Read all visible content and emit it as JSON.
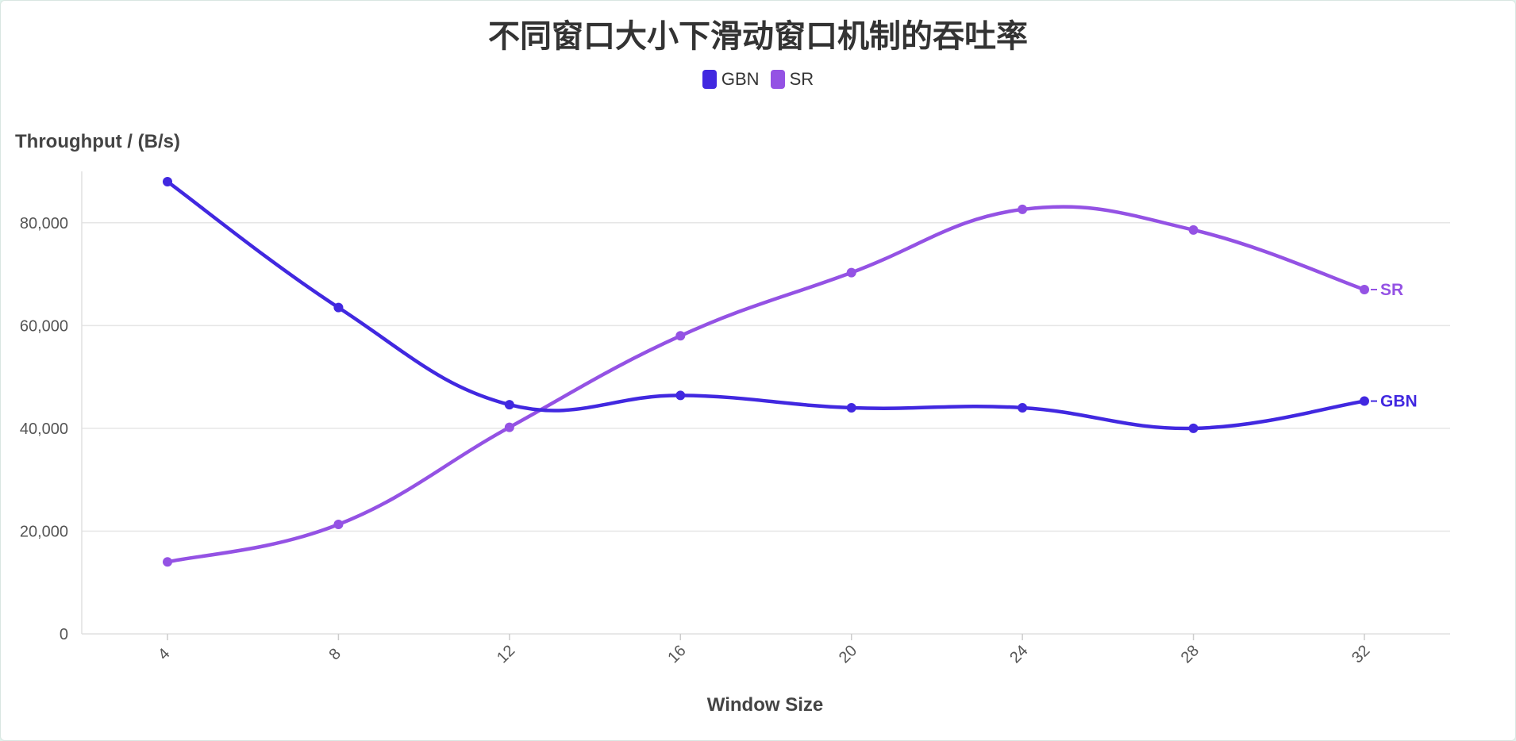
{
  "chart_data": {
    "type": "line",
    "title": "不同窗口大小下滑动窗口机制的吞吐率",
    "xlabel": "Window Size",
    "ylabel": "Throughput / (B/s)",
    "x": [
      4,
      8,
      12,
      16,
      20,
      24,
      28,
      32
    ],
    "ylim": [
      0,
      90000
    ],
    "yticks": [
      0,
      20000,
      40000,
      60000,
      80000
    ],
    "ytick_labels": [
      "0",
      "20,000",
      "40,000",
      "60,000",
      "80,000"
    ],
    "xtick_labels": [
      "4",
      "8",
      "12",
      "16",
      "20",
      "24",
      "28",
      "32"
    ],
    "grid": true,
    "legend_position": "top-center",
    "series": [
      {
        "name": "GBN",
        "color": "#4128e0",
        "values": [
          88000,
          63500,
          44600,
          46400,
          44000,
          44000,
          40000,
          45300
        ]
      },
      {
        "name": "SR",
        "color": "#9452e4",
        "values": [
          14000,
          21300,
          40200,
          58000,
          70300,
          82600,
          78600,
          67000
        ]
      }
    ]
  }
}
